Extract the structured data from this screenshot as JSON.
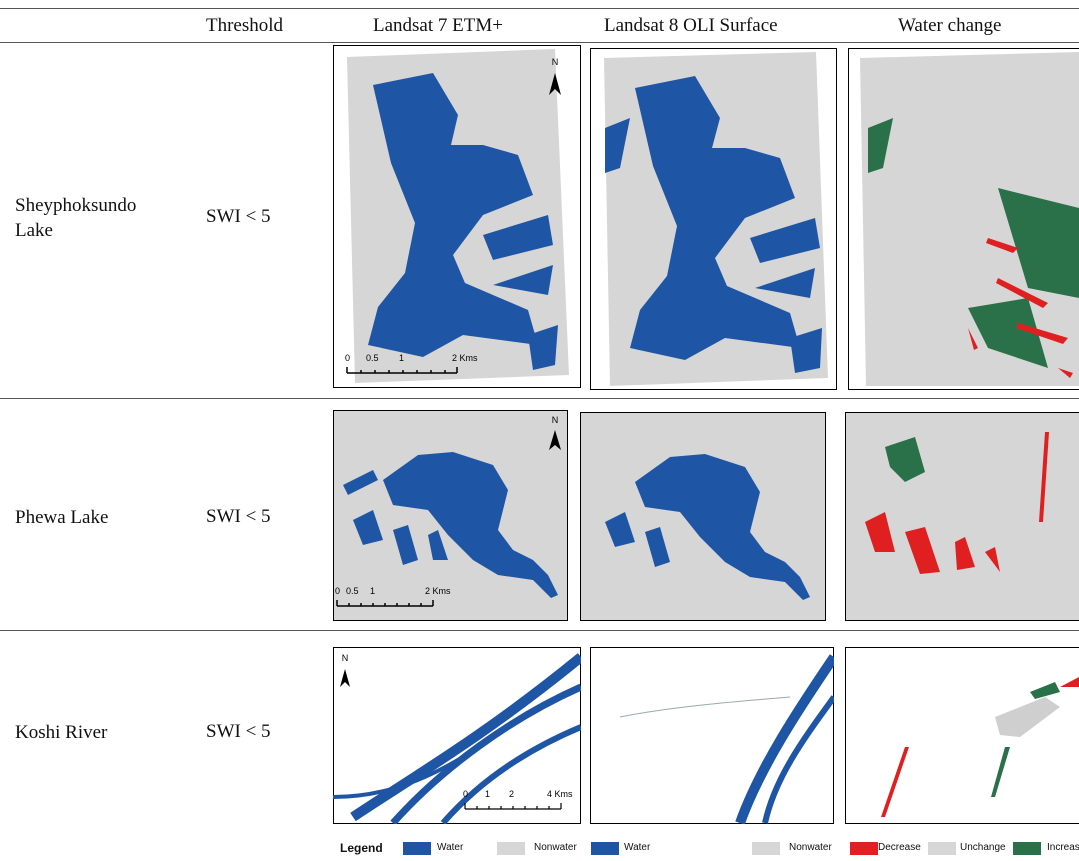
{
  "table": {
    "columns": [
      "Threshold",
      "Landsat 7 ETM+",
      "Landsat 8 OLI Surface",
      "Water change"
    ],
    "rows": [
      {
        "name": "Sheyphoksundo Lake",
        "threshold": "SWI < 5",
        "north": "N",
        "scale_labels": [
          "0",
          "0.5",
          "1",
          "2 Kms"
        ]
      },
      {
        "name": "Phewa Lake",
        "threshold": "SWI < 5",
        "north": "N",
        "scale_labels": [
          "0",
          "0.5",
          "1",
          "2 Kms"
        ]
      },
      {
        "name": "Koshi River",
        "threshold": "SWI < 5",
        "north": "N",
        "scale_labels": [
          "0",
          "1",
          "2",
          "4 Kms"
        ]
      }
    ],
    "legend": {
      "title": "Legend",
      "items": [
        "Water",
        "Nonwater",
        "Water",
        "Nonwater",
        "Decrease",
        "Unchange",
        "Increas"
      ]
    }
  }
}
